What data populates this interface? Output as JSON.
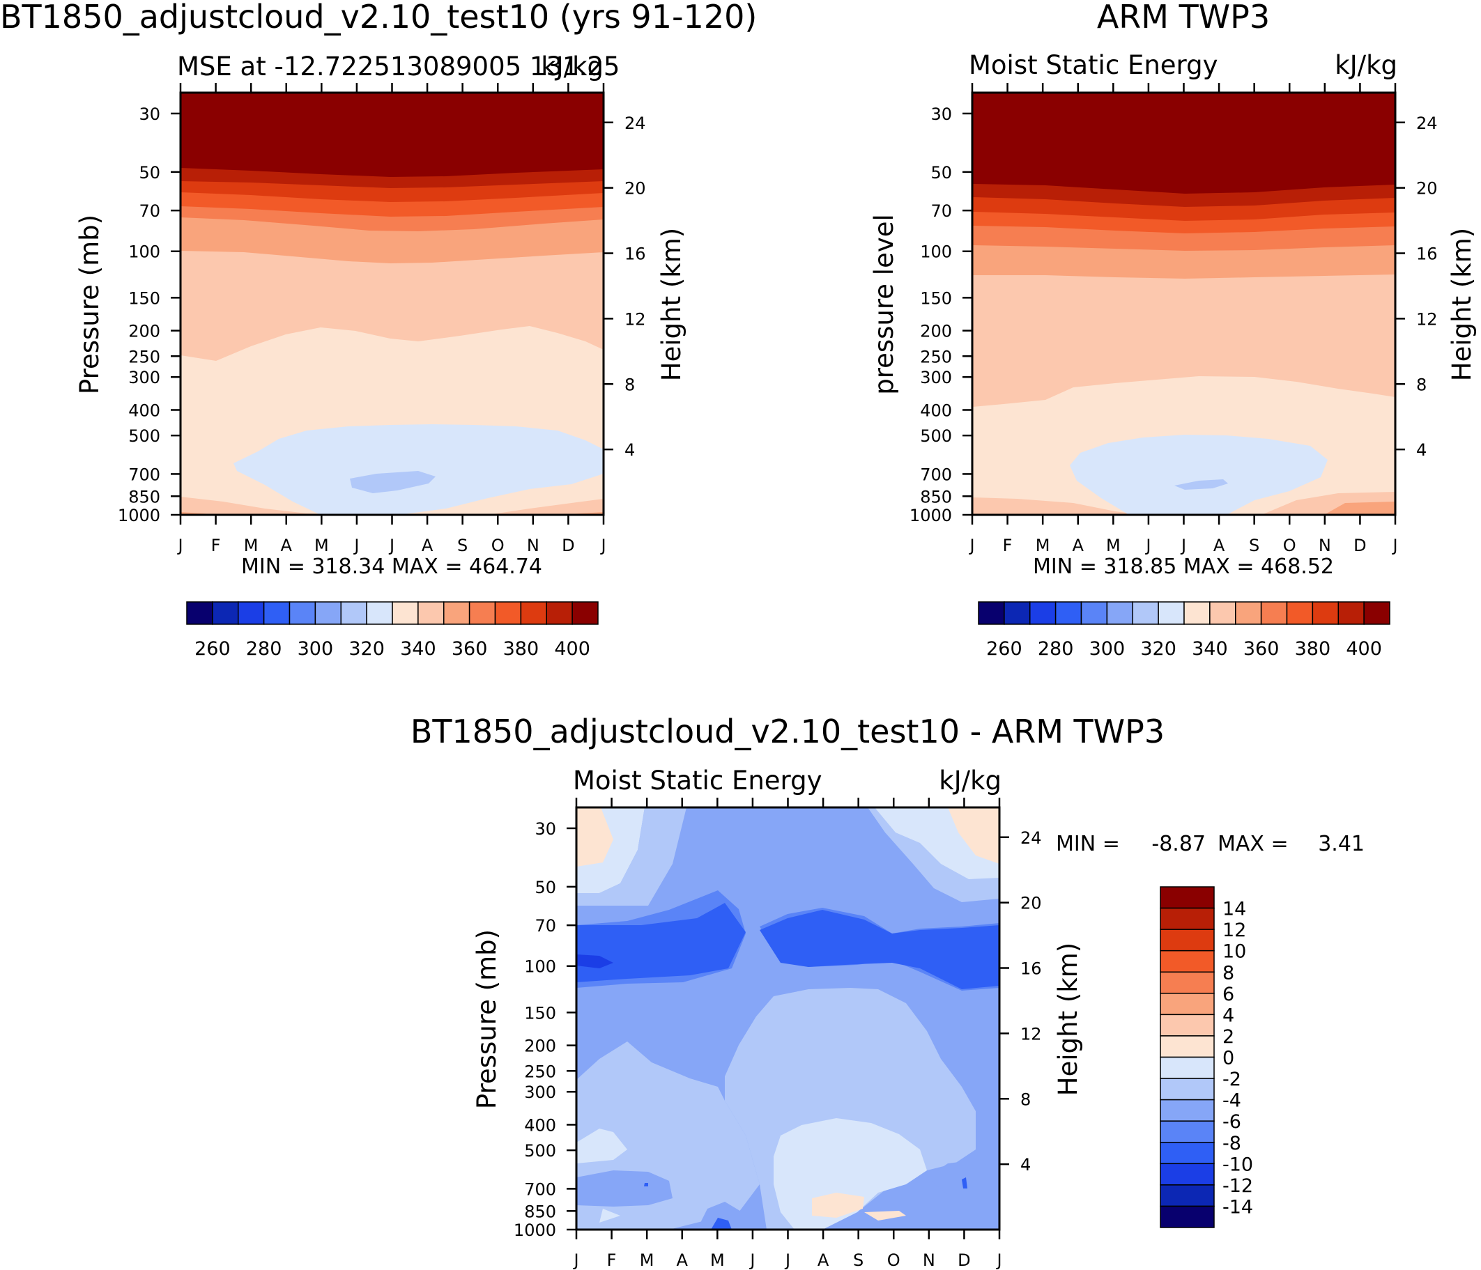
{
  "top_left": {
    "title": "BT1850_adjustcloud_v2.10_test10 (yrs 91-120)",
    "subtitle_left": "MSE at -12.722513089005 131.25",
    "subtitle_right": "kJ/kg",
    "y_label": "Pressure (mb)",
    "y2_label": "Height (km)",
    "minmax": "MIN = 318.34 MAX = 464.74"
  },
  "top_right": {
    "title": "ARM TWP3",
    "subtitle_left": "Moist Static Energy",
    "subtitle_right": "kJ/kg",
    "y_label": "pressure level",
    "y2_label": "Height (km)",
    "minmax": "MIN = 318.85 MAX = 468.52"
  },
  "bottom": {
    "title": "BT1850_adjustcloud_v2.10_test10 - ARM TWP3",
    "subtitle_left": "Moist Static Energy",
    "subtitle_right": "kJ/kg",
    "y_label": "Pressure (mb)",
    "y2_label": "Height (km)",
    "min_label": "MIN =",
    "min_value": "-8.87",
    "max_label": "MAX =",
    "max_value": "3.41"
  },
  "months": [
    "J",
    "F",
    "M",
    "A",
    "M",
    "J",
    "J",
    "A",
    "S",
    "O",
    "N",
    "D",
    "J"
  ],
  "pressure_ticks": [
    "30",
    "50",
    "70",
    "100",
    "150",
    "200",
    "250",
    "300",
    "400",
    "500",
    "700",
    "850",
    "1000"
  ],
  "height_ticks": [
    "24",
    "20",
    "16",
    "12",
    "8",
    "4"
  ],
  "mse_colorbar": {
    "colors": [
      "#08006e",
      "#0c27b4",
      "#1b3ee6",
      "#2f5ff5",
      "#5a84f7",
      "#86a6f7",
      "#b1c8f9",
      "#d8e6fb",
      "#fde4d2",
      "#fcc8ae",
      "#f9a47c",
      "#f67e51",
      "#f25a28",
      "#dd3b10",
      "#b81f06",
      "#8a0000"
    ],
    "labels": [
      "260",
      "280",
      "300",
      "320",
      "340",
      "360",
      "380",
      "400"
    ]
  },
  "diff_colorbar": {
    "colors": [
      "#08006e",
      "#0c27b4",
      "#1b3ee6",
      "#2f5ff5",
      "#5a84f7",
      "#86a6f7",
      "#b1c8f9",
      "#d8e6fb",
      "#fde4d2",
      "#fcc8ae",
      "#f9a47c",
      "#f67e51",
      "#f25a28",
      "#dd3b10",
      "#b81f06",
      "#8a0000"
    ],
    "labels": [
      "14",
      "12",
      "10",
      "8",
      "6",
      "4",
      "2",
      "0",
      "-2",
      "-4",
      "-6",
      "-8",
      "-10",
      "-12",
      "-14"
    ]
  },
  "chart_data": [
    {
      "type": "heatmap",
      "title": "BT1850_adjustcloud_v2.10_test10 (yrs 91-120)",
      "variable": "Moist Static Energy",
      "units": "kJ/kg",
      "x": [
        "J",
        "F",
        "M",
        "A",
        "M",
        "J",
        "J",
        "A",
        "S",
        "O",
        "N",
        "D",
        "J"
      ],
      "y_pressure_mb": [
        30,
        50,
        70,
        100,
        150,
        200,
        250,
        300,
        400,
        500,
        700,
        850,
        1000
      ],
      "contour_levels": [
        250,
        260,
        270,
        280,
        290,
        300,
        310,
        320,
        330,
        340,
        350,
        360,
        370,
        380,
        390,
        400,
        410
      ],
      "min": 318.34,
      "max": 464.74
    },
    {
      "type": "heatmap",
      "title": "ARM TWP3",
      "variable": "Moist Static Energy",
      "units": "kJ/kg",
      "x": [
        "J",
        "F",
        "M",
        "A",
        "M",
        "J",
        "J",
        "A",
        "S",
        "O",
        "N",
        "D",
        "J"
      ],
      "y_pressure_mb": [
        30,
        50,
        70,
        100,
        150,
        200,
        250,
        300,
        400,
        500,
        700,
        850,
        1000
      ],
      "contour_levels": [
        250,
        260,
        270,
        280,
        290,
        300,
        310,
        320,
        330,
        340,
        350,
        360,
        370,
        380,
        390,
        400,
        410
      ],
      "min": 318.85,
      "max": 468.52
    },
    {
      "type": "heatmap",
      "title": "BT1850_adjustcloud_v2.10_test10 - ARM TWP3",
      "variable": "Moist Static Energy",
      "units": "kJ/kg",
      "x": [
        "J",
        "F",
        "M",
        "A",
        "M",
        "J",
        "J",
        "A",
        "S",
        "O",
        "N",
        "D",
        "J"
      ],
      "y_pressure_mb": [
        30,
        50,
        70,
        100,
        150,
        200,
        250,
        300,
        400,
        500,
        700,
        850,
        1000
      ],
      "contour_levels": [
        -16,
        -14,
        -12,
        -10,
        -8,
        -6,
        -4,
        -2,
        0,
        2,
        4,
        6,
        8,
        10,
        12,
        14,
        16
      ],
      "min": -8.87,
      "max": 3.41
    }
  ]
}
